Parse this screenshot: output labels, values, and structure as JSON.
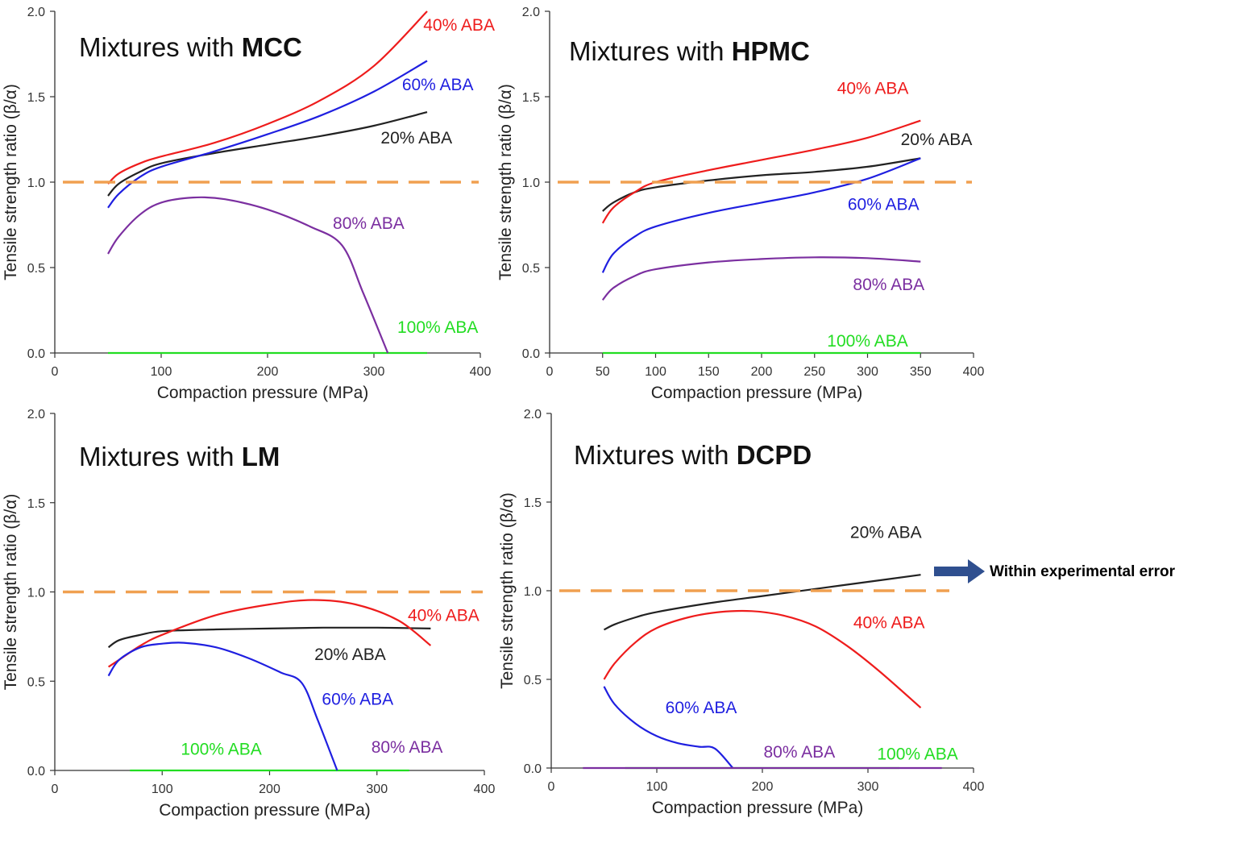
{
  "annotation": {
    "text": "Within experimental error",
    "arrow_color": "#2f4f8f"
  },
  "colors": {
    "20% ABA": "#222222",
    "40% ABA": "#ee1c1c",
    "60% ABA": "#1f1fe0",
    "80% ABA": "#7b2fa0",
    "100% ABA": "#22dd22",
    "reference": "#f0a050"
  },
  "chart_data": [
    {
      "type": "line",
      "title_prefix": "Mixtures with ",
      "title_bold": "MCC",
      "xlabel": "Compaction pressure (MPa)",
      "ylabel": "Tensile strength ratio (β/α)",
      "xlim": [
        0,
        400
      ],
      "ylim": [
        0,
        2.0
      ],
      "xticks": [
        "0",
        "100",
        "200",
        "300",
        "400"
      ],
      "yticks": [
        "0.0",
        "0.5",
        "1.0",
        "1.5",
        "2.0"
      ],
      "reference_line": 1.0,
      "series": [
        {
          "name": "20% ABA",
          "x": [
            50,
            60,
            80,
            100,
            150,
            200,
            250,
            300,
            350
          ],
          "y": [
            0.92,
            0.99,
            1.06,
            1.11,
            1.17,
            1.22,
            1.27,
            1.33,
            1.41
          ]
        },
        {
          "name": "40% ABA",
          "x": [
            50,
            60,
            80,
            100,
            150,
            200,
            250,
            300,
            350
          ],
          "y": [
            0.99,
            1.05,
            1.11,
            1.15,
            1.23,
            1.34,
            1.48,
            1.68,
            2.0
          ]
        },
        {
          "name": "60% ABA",
          "x": [
            50,
            60,
            80,
            100,
            150,
            200,
            250,
            300,
            350
          ],
          "y": [
            0.85,
            0.93,
            1.03,
            1.09,
            1.18,
            1.28,
            1.39,
            1.53,
            1.71
          ]
        },
        {
          "name": "80% ABA",
          "x": [
            50,
            60,
            80,
            100,
            130,
            160,
            200,
            240,
            270,
            290,
            313
          ],
          "y": [
            0.58,
            0.68,
            0.81,
            0.88,
            0.91,
            0.9,
            0.84,
            0.74,
            0.63,
            0.35,
            0.0
          ]
        },
        {
          "name": "100% ABA",
          "x": [
            50,
            350
          ],
          "y": [
            0.0,
            0.0
          ]
        }
      ],
      "label_positions": [
        {
          "name": "40% ABA",
          "x": 380,
          "y": 1.92
        },
        {
          "name": "60% ABA",
          "x": 360,
          "y": 1.57
        },
        {
          "name": "20% ABA",
          "x": 340,
          "y": 1.26
        },
        {
          "name": "80% ABA",
          "x": 295,
          "y": 0.76
        },
        {
          "name": "100% ABA",
          "x": 360,
          "y": 0.15
        }
      ]
    },
    {
      "type": "line",
      "title_prefix": "Mixtures with ",
      "title_bold": "HPMC",
      "xlabel": "Compaction pressure (MPa)",
      "ylabel": "Tensile strength ratio (β/α)",
      "xlim": [
        0,
        400
      ],
      "ylim": [
        0,
        2.0
      ],
      "xticks": [
        "0",
        "50",
        "100",
        "150",
        "200",
        "250",
        "300",
        "350",
        "400"
      ],
      "yticks": [
        "0.0",
        "0.5",
        "1.0",
        "1.5",
        "2.0"
      ],
      "reference_line": 1.0,
      "series": [
        {
          "name": "20% ABA",
          "x": [
            50,
            60,
            80,
            100,
            150,
            200,
            250,
            300,
            350
          ],
          "y": [
            0.83,
            0.88,
            0.94,
            0.97,
            1.01,
            1.04,
            1.06,
            1.09,
            1.14
          ]
        },
        {
          "name": "40% ABA",
          "x": [
            50,
            60,
            80,
            100,
            150,
            200,
            250,
            300,
            350
          ],
          "y": [
            0.76,
            0.85,
            0.94,
            1.0,
            1.07,
            1.13,
            1.19,
            1.26,
            1.36
          ]
        },
        {
          "name": "60% ABA",
          "x": [
            50,
            60,
            80,
            100,
            150,
            200,
            250,
            300,
            350
          ],
          "y": [
            0.47,
            0.58,
            0.68,
            0.74,
            0.82,
            0.88,
            0.94,
            1.02,
            1.14
          ]
        },
        {
          "name": "80% ABA",
          "x": [
            50,
            60,
            80,
            100,
            150,
            200,
            250,
            300,
            350
          ],
          "y": [
            0.31,
            0.38,
            0.45,
            0.49,
            0.53,
            0.55,
            0.56,
            0.555,
            0.535
          ]
        },
        {
          "name": "100% ABA",
          "x": [
            50,
            350
          ],
          "y": [
            0.0,
            0.0
          ]
        }
      ],
      "label_positions": [
        {
          "name": "40% ABA",
          "x": 305,
          "y": 1.55
        },
        {
          "name": "20% ABA",
          "x": 365,
          "y": 1.25
        },
        {
          "name": "60% ABA",
          "x": 315,
          "y": 0.87
        },
        {
          "name": "80% ABA",
          "x": 320,
          "y": 0.4
        },
        {
          "name": "100% ABA",
          "x": 300,
          "y": 0.07
        }
      ]
    },
    {
      "type": "line",
      "title_prefix": "Mixtures with ",
      "title_bold": "LM",
      "xlabel": "Compaction pressure (MPa)",
      "ylabel": "Tensile strength ratio (β/α)",
      "xlim": [
        0,
        400
      ],
      "ylim": [
        0,
        2.0
      ],
      "xticks": [
        "0",
        "100",
        "200",
        "300",
        "400"
      ],
      "yticks": [
        "0.0",
        "0.5",
        "1.0",
        "1.5",
        "2.0"
      ],
      "reference_line": 1.0,
      "series": [
        {
          "name": "20% ABA",
          "x": [
            50,
            60,
            80,
            100,
            150,
            200,
            250,
            300,
            350
          ],
          "y": [
            0.69,
            0.73,
            0.76,
            0.78,
            0.79,
            0.795,
            0.8,
            0.8,
            0.795
          ]
        },
        {
          "name": "40% ABA",
          "x": [
            50,
            60,
            80,
            100,
            150,
            200,
            240,
            280,
            320,
            350
          ],
          "y": [
            0.58,
            0.62,
            0.7,
            0.76,
            0.87,
            0.93,
            0.955,
            0.93,
            0.84,
            0.7
          ]
        },
        {
          "name": "60% ABA",
          "x": [
            50,
            60,
            80,
            100,
            120,
            150,
            180,
            210,
            230,
            245,
            263
          ],
          "y": [
            0.53,
            0.62,
            0.69,
            0.71,
            0.715,
            0.69,
            0.63,
            0.55,
            0.49,
            0.28,
            0.0
          ]
        },
        {
          "name": "100% ABA",
          "x": [
            70,
            330
          ],
          "y": [
            0.0,
            0.0
          ]
        }
      ],
      "label_positions": [
        {
          "name": "40% ABA",
          "x": 362,
          "y": 0.87
        },
        {
          "name": "20% ABA",
          "x": 275,
          "y": 0.65
        },
        {
          "name": "60% ABA",
          "x": 282,
          "y": 0.4
        },
        {
          "name": "80% ABA",
          "x": 328,
          "y": 0.13
        },
        {
          "name": "100% ABA",
          "x": 155,
          "y": 0.12
        }
      ]
    },
    {
      "type": "line",
      "title_prefix": "Mixtures with ",
      "title_bold": "DCPD",
      "xlabel": "Compaction pressure (MPa)",
      "ylabel": "Tensile strength ratio (β/α)",
      "xlim": [
        0,
        400
      ],
      "ylim": [
        0,
        2.0
      ],
      "xticks": [
        "0",
        "100",
        "200",
        "300",
        "400"
      ],
      "yticks": [
        "0.0",
        "0.5",
        "1.0",
        "1.5",
        "2.0"
      ],
      "reference_line": 1.0,
      "series": [
        {
          "name": "20% ABA",
          "x": [
            50,
            60,
            80,
            100,
            150,
            200,
            250,
            300,
            350
          ],
          "y": [
            0.78,
            0.81,
            0.85,
            0.88,
            0.93,
            0.97,
            1.01,
            1.05,
            1.09
          ]
        },
        {
          "name": "40% ABA",
          "x": [
            50,
            60,
            80,
            100,
            130,
            160,
            190,
            220,
            250,
            280,
            310,
            350
          ],
          "y": [
            0.5,
            0.59,
            0.71,
            0.79,
            0.85,
            0.88,
            0.885,
            0.86,
            0.8,
            0.69,
            0.55,
            0.34
          ]
        },
        {
          "name": "60% ABA",
          "x": [
            50,
            60,
            80,
            100,
            120,
            140,
            155,
            172
          ],
          "y": [
            0.46,
            0.36,
            0.25,
            0.18,
            0.14,
            0.12,
            0.11,
            0.0
          ]
        },
        {
          "name": "80% ABA",
          "x": [
            30,
            370
          ],
          "y": [
            0.0,
            0.0
          ]
        },
        {
          "name": "100% ABA",
          "x": [
            70,
            330
          ],
          "y": [
            0.0,
            0.0
          ]
        }
      ],
      "label_positions": [
        {
          "name": "20% ABA",
          "x": 317,
          "y": 1.33
        },
        {
          "name": "40% ABA",
          "x": 320,
          "y": 0.82
        },
        {
          "name": "60% ABA",
          "x": 142,
          "y": 0.34
        },
        {
          "name": "80% ABA",
          "x": 235,
          "y": 0.09
        },
        {
          "name": "100% ABA",
          "x": 347,
          "y": 0.08
        }
      ]
    }
  ]
}
